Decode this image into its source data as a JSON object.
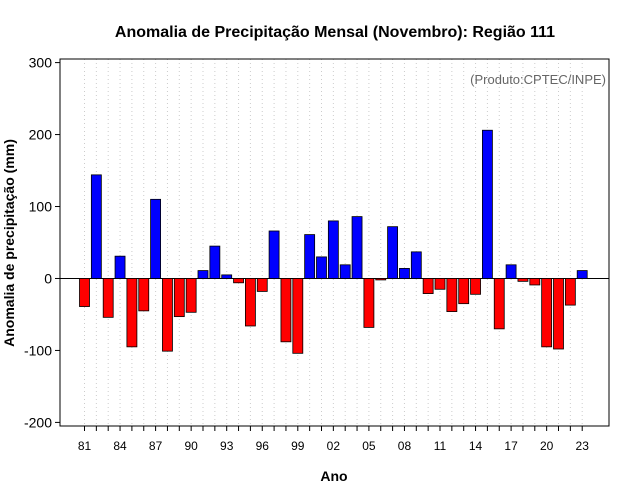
{
  "chart_data": {
    "type": "bar",
    "title": "Anomalia de Precipitação Mensal (Novembro): Região 111",
    "xlabel": "Ano",
    "ylabel": "Anomalia de precipitação (mm)",
    "credit": "(Produto:CPTEC/INPE)",
    "ylim": [
      -205,
      305
    ],
    "yticks": [
      -200,
      -100,
      0,
      100,
      200,
      300
    ],
    "grid": "vertical dotted",
    "positive_color": "#0000ff",
    "negative_color": "#ff0000",
    "categories": [
      "1981",
      "1982",
      "1983",
      "1984",
      "1985",
      "1986",
      "1987",
      "1988",
      "1989",
      "1990",
      "1991",
      "1992",
      "1993",
      "1994",
      "1995",
      "1996",
      "1997",
      "1998",
      "1999",
      "2000",
      "2001",
      "2002",
      "2003",
      "2004",
      "2005",
      "2006",
      "2007",
      "2008",
      "2009",
      "2010",
      "2011",
      "2012",
      "2013",
      "2014",
      "2015",
      "2016",
      "2017",
      "2018",
      "2019",
      "2020",
      "2021",
      "2022",
      "2023"
    ],
    "xtick_labels": [
      {
        "index": 0,
        "label": "81"
      },
      {
        "index": 3,
        "label": "84"
      },
      {
        "index": 6,
        "label": "87"
      },
      {
        "index": 9,
        "label": "90"
      },
      {
        "index": 12,
        "label": "93"
      },
      {
        "index": 15,
        "label": "96"
      },
      {
        "index": 18,
        "label": "99"
      },
      {
        "index": 21,
        "label": "02"
      },
      {
        "index": 24,
        "label": "05"
      },
      {
        "index": 27,
        "label": "08"
      },
      {
        "index": 30,
        "label": "11"
      },
      {
        "index": 33,
        "label": "14"
      },
      {
        "index": 36,
        "label": "17"
      },
      {
        "index": 39,
        "label": "20"
      },
      {
        "index": 42,
        "label": "23"
      }
    ],
    "values": [
      -39,
      144,
      -54,
      31,
      -95,
      -45,
      110,
      -101,
      -53,
      -47,
      11,
      45,
      5,
      -6,
      -66,
      -18,
      66,
      -88,
      -104,
      61,
      30,
      80,
      19,
      86,
      -68,
      -2,
      72,
      14,
      37,
      -21,
      -15,
      -46,
      -35,
      -22,
      206,
      -70,
      19,
      -4,
      -9,
      -95,
      -98,
      -37,
      11
    ]
  }
}
